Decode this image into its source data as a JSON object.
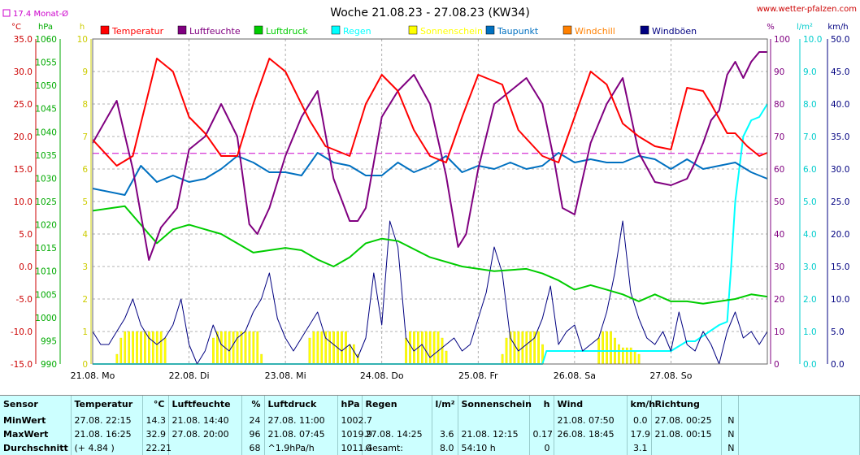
{
  "header": {
    "title": "Woche 21.08.23 - 27.08.23 (KW34)",
    "site": "www.wetter-pfalzen.com",
    "avg_label": "17.4 Monat-Ø"
  },
  "units": {
    "temp": "°C",
    "press": "hPa",
    "sun": "h",
    "hum": "%",
    "rain": "l/m²",
    "wind": "km/h"
  },
  "legend": [
    {
      "label": "Temperatur",
      "color": "#ff0000"
    },
    {
      "label": "Luftfeuchte",
      "color": "#800080"
    },
    {
      "label": "Luftdruck",
      "color": "#00cc00"
    },
    {
      "label": "Regen",
      "color": "#00ffff"
    },
    {
      "label": "Sonnenschein",
      "color": "#ffff00"
    },
    {
      "label": "Taupunkt",
      "color": "#0070c0"
    },
    {
      "label": "Windchill",
      "color": "#ff8000"
    },
    {
      "label": "Windböen",
      "color": "#000080"
    }
  ],
  "chart_data": {
    "type": "line",
    "title": "Woche 21.08.23 - 27.08.23 (KW34)",
    "x_days": [
      "21.08. Mo",
      "22.08. Di",
      "23.08. Mi",
      "24.08. Do",
      "25.08. Fr",
      "26.08. Sa",
      "27.08. So"
    ],
    "x_unit": "hours since 21.08. 00:00",
    "axes": {
      "temp": {
        "ticks": [
          "35.0",
          "30.0",
          "25.0",
          "20.0",
          "15.0",
          "10.0",
          "5.0",
          "0.0",
          "-5.0",
          "-10.0",
          "-15.0"
        ],
        "ylim": [
          -15,
          35
        ]
      },
      "press": {
        "ticks": [
          "1060",
          "1055",
          "1050",
          "1045",
          "1040",
          "1035",
          "1030",
          "1025",
          "1020",
          "1015",
          "1010",
          "1005",
          "1000",
          "995",
          "990"
        ],
        "ylim": [
          990,
          1060
        ]
      },
      "sun": {
        "ticks": [
          "10",
          "9",
          "8",
          "7",
          "6",
          "5",
          "4",
          "3",
          "2",
          "1",
          "0"
        ],
        "ylim": [
          0,
          10
        ]
      },
      "hum": {
        "ticks": [
          "100",
          "90",
          "80",
          "70",
          "60",
          "50",
          "40",
          "30",
          "20",
          "10",
          "0"
        ],
        "ylim": [
          0,
          100
        ]
      },
      "rain": {
        "ticks": [
          "10.0",
          "9.0",
          "8.0",
          "7.0",
          "6.0",
          "5.0",
          "4.0",
          "3.0",
          "2.0",
          "1.0",
          "0.0"
        ],
        "ylim": [
          0,
          10
        ]
      },
      "wind": {
        "ticks": [
          "50.0",
          "45.0",
          "40.0",
          "35.0",
          "30.0",
          "25.0",
          "20.0",
          "15.0",
          "10.0",
          "5.0",
          "0.0"
        ],
        "ylim": [
          0,
          50
        ]
      }
    },
    "month_avg_temp": 17.4,
    "series": [
      {
        "name": "Temperatur",
        "axis": "temp",
        "color": "#ff0000",
        "x": [
          0,
          6,
          10,
          16,
          20,
          24,
          28,
          32,
          36,
          40,
          44,
          48,
          54,
          58,
          64,
          68,
          72,
          76,
          80,
          84,
          88,
          92,
          96,
          102,
          106,
          112,
          116,
          120,
          124,
          128,
          132,
          136,
          140,
          144,
          148,
          152,
          154,
          158,
          160,
          163,
          166,
          168
        ],
        "y": [
          19.5,
          15.5,
          17,
          32,
          30,
          23,
          20.5,
          17,
          17,
          25,
          32,
          30,
          22.5,
          18.5,
          17,
          25,
          29.5,
          27,
          21,
          17,
          16,
          23,
          29.5,
          28,
          21,
          17,
          16,
          23,
          30,
          28,
          22,
          20,
          18.5,
          18,
          27.5,
          27,
          25,
          20.5,
          20.5,
          18.5,
          17,
          17.5
        ]
      },
      {
        "name": "Taupunkt",
        "axis": "temp",
        "color": "#0070c0",
        "x": [
          0,
          8,
          12,
          16,
          20,
          24,
          28,
          32,
          36,
          40,
          44,
          48,
          52,
          56,
          60,
          64,
          68,
          72,
          76,
          80,
          84,
          88,
          92,
          96,
          100,
          104,
          108,
          112,
          116,
          120,
          124,
          128,
          132,
          136,
          140,
          144,
          148,
          152,
          156,
          160,
          164,
          168
        ],
        "y": [
          12,
          11,
          15.5,
          13,
          14,
          13,
          13.5,
          15,
          17,
          16,
          14.5,
          14.5,
          14,
          17.5,
          16,
          15.5,
          14,
          14,
          16,
          14.5,
          15.5,
          17,
          14.5,
          15.5,
          15,
          16,
          15,
          15.5,
          17.5,
          16,
          16.5,
          16,
          16,
          17,
          16.5,
          15,
          16.5,
          15,
          15.5,
          16,
          14.5,
          13.5
        ]
      },
      {
        "name": "Luftdruck",
        "axis": "press",
        "color": "#00cc00",
        "x": [
          0,
          8,
          12,
          16,
          20,
          24,
          28,
          32,
          40,
          48,
          52,
          56,
          60,
          64,
          68,
          72,
          76,
          84,
          92,
          100,
          108,
          112,
          116,
          120,
          124,
          128,
          132,
          136,
          140,
          144,
          148,
          152,
          156,
          160,
          164,
          168
        ],
        "y": [
          1023,
          1024,
          1020,
          1016,
          1019,
          1020,
          1019,
          1018,
          1014,
          1015,
          1014.5,
          1012.5,
          1011,
          1013,
          1016,
          1017,
          1016.5,
          1013,
          1011,
          1010,
          1010.5,
          1009.5,
          1008,
          1006,
          1007,
          1006,
          1005,
          1003.5,
          1005,
          1003.5,
          1003.5,
          1003,
          1003.5,
          1004,
          1005,
          1004.5
        ]
      },
      {
        "name": "Luftfeuchte",
        "axis": "hum",
        "color": "#800080",
        "x": [
          0,
          6,
          10,
          14,
          17,
          21,
          24,
          28,
          32,
          36,
          39,
          41,
          44,
          48,
          52,
          56,
          60,
          64,
          66,
          68,
          72,
          76,
          80,
          84,
          88,
          91,
          93,
          96,
          100,
          104,
          108,
          112,
          115,
          117,
          120,
          124,
          128,
          132,
          136,
          140,
          144,
          148,
          150,
          152,
          154,
          156,
          158,
          160,
          162,
          164,
          166,
          168
        ],
        "y": [
          68,
          81,
          60,
          32,
          42,
          48,
          66,
          70,
          80,
          70,
          43,
          40,
          48,
          64,
          76,
          84,
          57,
          44,
          44,
          48,
          76,
          84,
          89,
          80,
          58,
          36,
          40,
          60,
          80,
          84,
          88,
          80,
          62,
          48,
          46,
          68,
          80,
          88,
          65,
          56,
          55,
          57,
          62,
          68,
          75,
          78,
          89,
          93,
          88,
          93,
          96,
          96
        ]
      },
      {
        "name": "Regen",
        "axis": "rain",
        "color": "#00ffff",
        "x": [
          0,
          112,
          113,
          144,
          148,
          150,
          156,
          158,
          159,
          160,
          162,
          164,
          166,
          167,
          168
        ],
        "y": [
          0,
          0,
          0.4,
          0.4,
          0.7,
          0.7,
          1.2,
          1.3,
          3,
          5,
          7,
          7.5,
          7.6,
          7.8,
          8.0
        ]
      },
      {
        "name": "Sonnenschein",
        "axis": "sun",
        "color": "#ffff00",
        "x": [
          6,
          7,
          8,
          9,
          10,
          11,
          12,
          13,
          14,
          15,
          16,
          17,
          18,
          30,
          31,
          32,
          33,
          34,
          35,
          36,
          37,
          38,
          39,
          40,
          41,
          42,
          54,
          55,
          56,
          57,
          58,
          59,
          60,
          61,
          62,
          63,
          64,
          65,
          66,
          78,
          79,
          80,
          81,
          82,
          83,
          84,
          85,
          86,
          87,
          88,
          102,
          103,
          104,
          105,
          106,
          107,
          108,
          109,
          110,
          111,
          112,
          126,
          127,
          128,
          129,
          130,
          131,
          132,
          133,
          134,
          135,
          136
        ],
        "y": [
          0.3,
          0.8,
          1,
          1,
          1,
          1,
          1,
          1,
          1,
          1,
          1,
          1,
          0.8,
          0.8,
          1,
          1,
          1,
          1,
          1,
          1,
          1,
          1,
          1,
          1,
          1,
          0.3,
          0.8,
          1,
          1,
          1,
          1,
          1,
          1,
          1,
          1,
          1,
          0.6,
          0.6,
          0.3,
          0.8,
          1,
          1,
          1,
          1,
          1,
          1,
          1,
          1,
          0.8,
          0.4,
          0.3,
          0.8,
          1,
          1,
          1,
          1,
          1,
          1,
          1,
          1,
          0.6,
          0.8,
          1,
          1,
          1,
          0.8,
          0.6,
          0.5,
          0.5,
          0.5,
          0.4,
          0.3
        ]
      },
      {
        "name": "Windböen",
        "axis": "wind",
        "color": "#000080",
        "x": [
          0,
          2,
          4,
          6,
          8,
          10,
          12,
          14,
          16,
          18,
          20,
          22,
          24,
          26,
          28,
          30,
          32,
          34,
          36,
          38,
          40,
          42,
          44,
          46,
          48,
          50,
          52,
          54,
          56,
          58,
          60,
          62,
          64,
          66,
          68,
          70,
          72,
          74,
          76,
          78,
          80,
          82,
          84,
          86,
          88,
          90,
          92,
          94,
          96,
          98,
          100,
          102,
          104,
          106,
          108,
          110,
          112,
          114,
          116,
          118,
          120,
          122,
          124,
          126,
          128,
          130,
          132,
          134,
          136,
          138,
          140,
          142,
          144,
          146,
          148,
          150,
          152,
          154,
          156,
          158,
          160,
          162,
          164,
          166,
          168
        ],
        "y": [
          5,
          3,
          3,
          5,
          7,
          10,
          6,
          4,
          3,
          4,
          6,
          10,
          3,
          0,
          2,
          6,
          3,
          2,
          4,
          5,
          8,
          10,
          14,
          7,
          4,
          2,
          4,
          6,
          8,
          4,
          3,
          2,
          3,
          1,
          4,
          14,
          6,
          22,
          18,
          4,
          2,
          3,
          1,
          2,
          3,
          4,
          2,
          3,
          7,
          11,
          18,
          14,
          4,
          2,
          3,
          4,
          7,
          12,
          3,
          5,
          6,
          2,
          3,
          4,
          8,
          14,
          22,
          11,
          7,
          4,
          3,
          5,
          2,
          8,
          3,
          2,
          5,
          3,
          0,
          5,
          8,
          4,
          5,
          3,
          5
        ]
      }
    ]
  },
  "stats": {
    "headers": [
      "Sensor",
      "Temperatur",
      "°C",
      "Luftfeuchte",
      "%",
      "Luftdruck",
      "hPa",
      "Regen",
      "l/m²",
      "Sonnenschein",
      "h",
      "Wind",
      "km/h",
      "Richtung",
      ""
    ],
    "rows": [
      [
        "MinWert",
        "27.08.  22:15",
        "14.3",
        "21.08.  14:40",
        "24",
        "27.08.  11:00",
        "1002.7",
        "",
        "",
        "",
        "",
        "21.08.  07:50",
        "0.0",
        "27.08.  00:25",
        "N"
      ],
      [
        "MaxWert",
        "21.08.  16:25",
        "32.9",
        "27.08.  20:00",
        "96",
        "21.08.  07:45",
        "1019.9",
        "27.08.  14:25",
        "3.6",
        "21.08.  12:15",
        "0.17",
        "26.08.  18:45",
        "17.9",
        "21.08.  00:15",
        "N"
      ],
      [
        "Durchschnitt",
        "(+ 4.84 )",
        "22.21",
        "",
        "68",
        "^1.9hPa/h",
        "1011.4",
        "Gesamt:",
        "8.0",
        "54:10 h",
        "0",
        "",
        "3.1",
        "",
        "N"
      ]
    ]
  }
}
